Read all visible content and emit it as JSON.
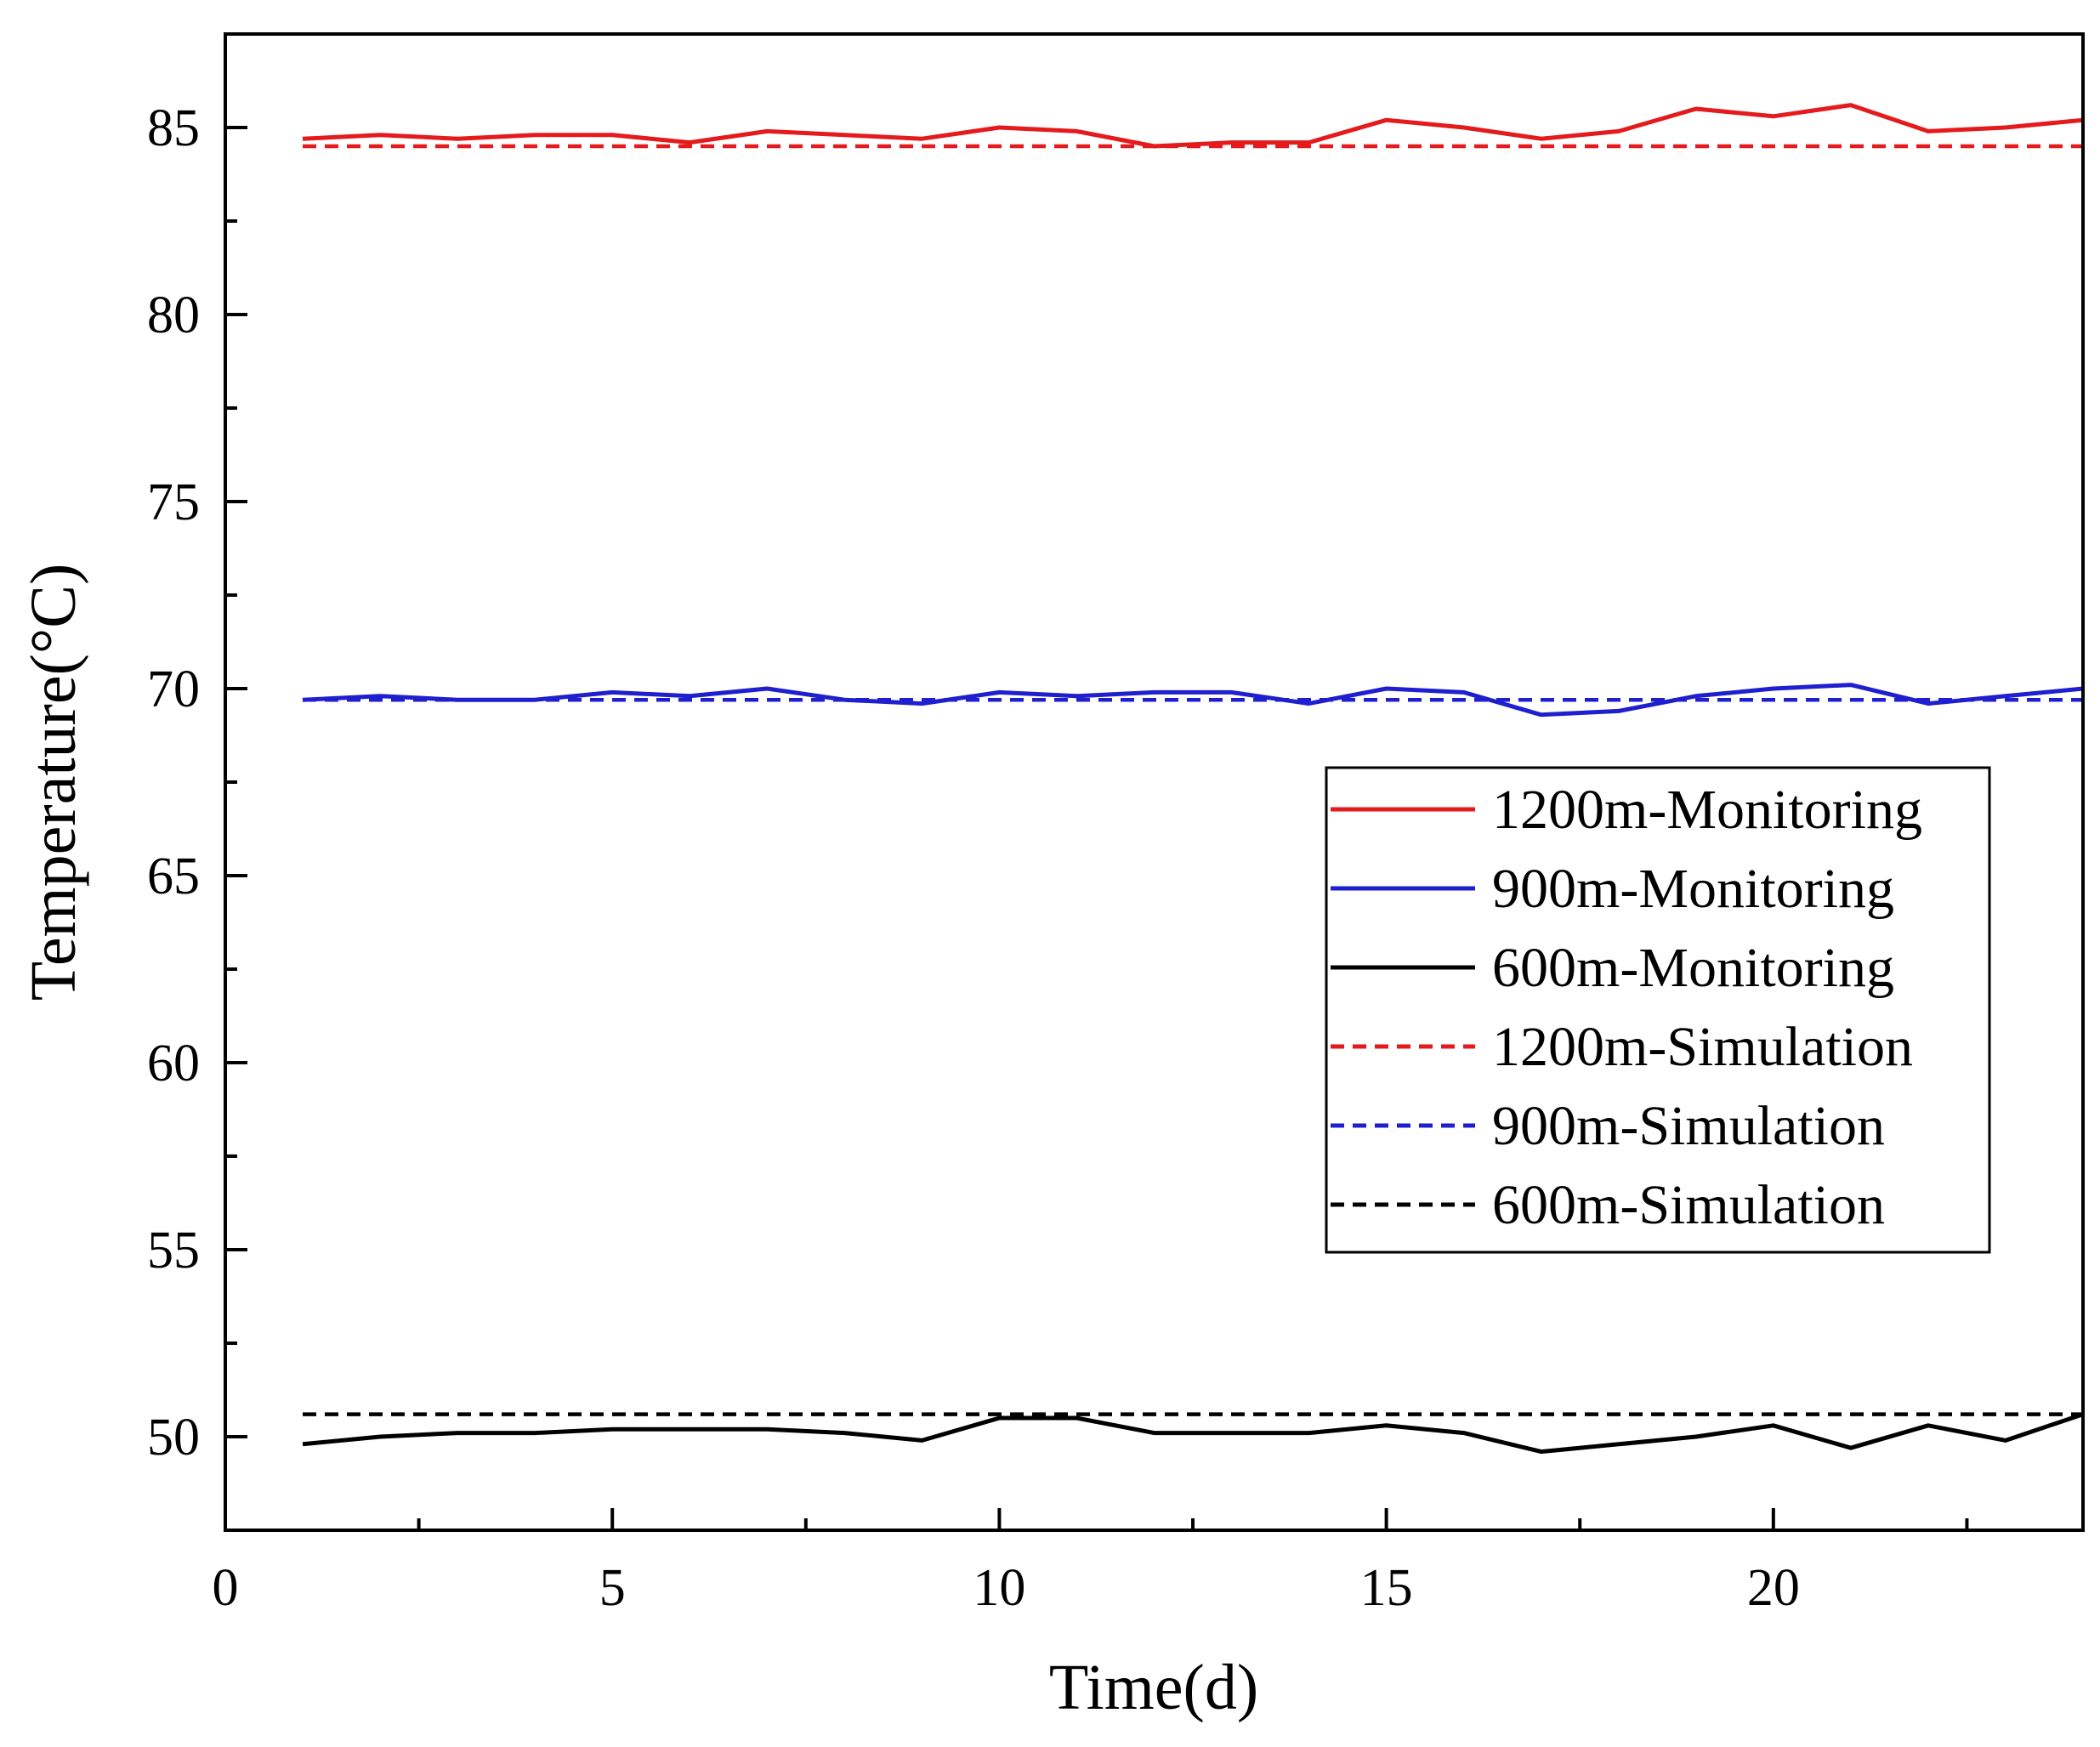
{
  "chart_data": {
    "type": "line",
    "title": "",
    "xlabel": "Time(d)",
    "ylabel": "Temperature(°C)",
    "xlim": [
      0,
      24
    ],
    "ylim": [
      47.5,
      87.5
    ],
    "xticks": [
      0,
      5,
      10,
      15,
      20
    ],
    "yticks": [
      50,
      55,
      60,
      65,
      70,
      75,
      80,
      85
    ],
    "grid": false,
    "legend_position": "center-right",
    "x": [
      1,
      2,
      3,
      4,
      5,
      6,
      7,
      8,
      9,
      10,
      11,
      12,
      13,
      14,
      15,
      16,
      17,
      18,
      19,
      20,
      21,
      22,
      23,
      24
    ],
    "series": [
      {
        "name": "1200m-Monitoring",
        "color": "#e41a1c",
        "style": "solid",
        "values": [
          84.7,
          84.8,
          84.7,
          84.8,
          84.8,
          84.6,
          84.9,
          84.8,
          84.7,
          85.0,
          84.9,
          84.5,
          84.6,
          84.6,
          85.2,
          85.0,
          84.7,
          84.9,
          85.5,
          85.3,
          85.6,
          84.9,
          85.0,
          85.2
        ]
      },
      {
        "name": "900m-Monitoring",
        "color": "#1f1fd0",
        "style": "solid",
        "values": [
          69.7,
          69.8,
          69.7,
          69.7,
          69.9,
          69.8,
          70.0,
          69.7,
          69.6,
          69.9,
          69.8,
          69.9,
          69.9,
          69.6,
          70.0,
          69.9,
          69.3,
          69.4,
          69.8,
          70.0,
          70.1,
          69.6,
          69.8,
          70.0
        ]
      },
      {
        "name": "600m-Monitoring",
        "color": "#000000",
        "style": "solid",
        "values": [
          49.8,
          50.0,
          50.1,
          50.1,
          50.2,
          50.2,
          50.2,
          50.1,
          49.9,
          50.5,
          50.5,
          50.1,
          50.1,
          50.1,
          50.3,
          50.1,
          49.6,
          49.8,
          50.0,
          50.3,
          49.7,
          50.3,
          49.9,
          50.6
        ]
      },
      {
        "name": "1200m-Simulation",
        "color": "#e41a1c",
        "style": "dashed",
        "values": [
          84.5,
          84.5,
          84.5,
          84.5,
          84.5,
          84.5,
          84.5,
          84.5,
          84.5,
          84.5,
          84.5,
          84.5,
          84.5,
          84.5,
          84.5,
          84.5,
          84.5,
          84.5,
          84.5,
          84.5,
          84.5,
          84.5,
          84.5,
          84.5
        ]
      },
      {
        "name": "900m-Simulation",
        "color": "#1f1fd0",
        "style": "dashed",
        "values": [
          69.7,
          69.7,
          69.7,
          69.7,
          69.7,
          69.7,
          69.7,
          69.7,
          69.7,
          69.7,
          69.7,
          69.7,
          69.7,
          69.7,
          69.7,
          69.7,
          69.7,
          69.7,
          69.7,
          69.7,
          69.7,
          69.7,
          69.7,
          69.7
        ]
      },
      {
        "name": "600m-Simulation",
        "color": "#000000",
        "style": "dashed",
        "values": [
          50.6,
          50.6,
          50.6,
          50.6,
          50.6,
          50.6,
          50.6,
          50.6,
          50.6,
          50.6,
          50.6,
          50.6,
          50.6,
          50.6,
          50.6,
          50.6,
          50.6,
          50.6,
          50.6,
          50.6,
          50.6,
          50.6,
          50.6,
          50.6
        ]
      }
    ]
  }
}
